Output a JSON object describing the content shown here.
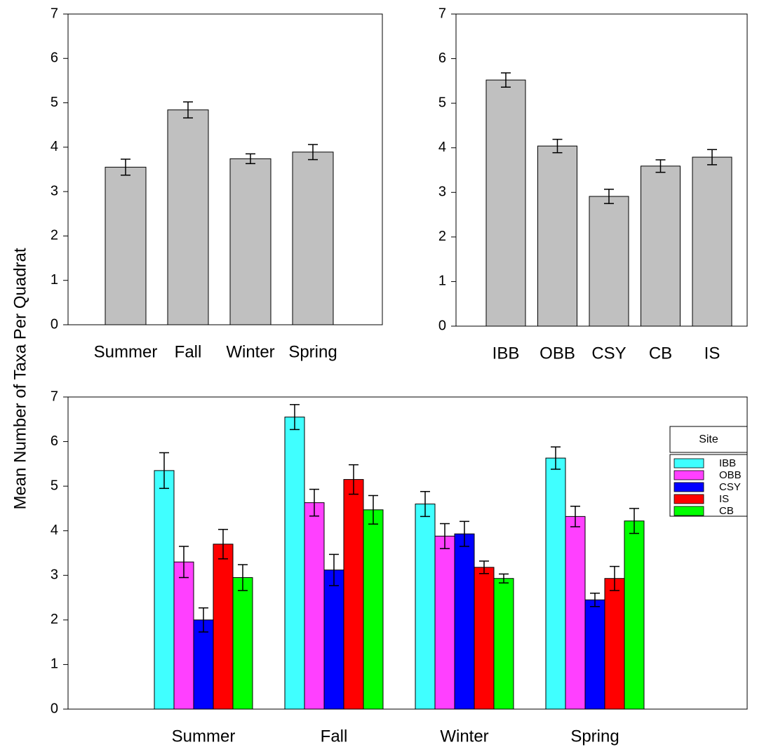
{
  "y_label": "Mean Number of Taxa Per Quadrat",
  "chart_data": [
    {
      "type": "bar",
      "categories": [
        "Summer",
        "Fall",
        "Winter",
        "Spring"
      ],
      "values": [
        3.55,
        4.84,
        3.74,
        3.89
      ],
      "errors": [
        0.18,
        0.18,
        0.11,
        0.17
      ],
      "color": "#c0c0c0",
      "ylim": [
        0,
        7
      ],
      "yticks": [
        0,
        1,
        2,
        3,
        4,
        5,
        6,
        7
      ]
    },
    {
      "type": "bar",
      "categories": [
        "IBB",
        "OBB",
        "CSY",
        "CB",
        "IS"
      ],
      "values": [
        5.52,
        4.04,
        2.91,
        3.59,
        3.79
      ],
      "errors": [
        0.16,
        0.15,
        0.16,
        0.14,
        0.17
      ],
      "color": "#c0c0c0",
      "ylim": [
        0,
        7
      ],
      "yticks": [
        0,
        1,
        2,
        3,
        4,
        5,
        6,
        7
      ]
    },
    {
      "type": "grouped_bar",
      "categories": [
        "Summer",
        "Fall",
        "Winter",
        "Spring"
      ],
      "legend_title": "Site",
      "ylim": [
        0,
        7
      ],
      "yticks": [
        0,
        1,
        2,
        3,
        4,
        5,
        6,
        7
      ],
      "series": [
        {
          "name": "IBB",
          "color": "#40ffff",
          "values": [
            5.35,
            6.55,
            4.6,
            5.63
          ],
          "errors": [
            0.4,
            0.28,
            0.28,
            0.25
          ]
        },
        {
          "name": "OBB",
          "color": "#ff40ff",
          "values": [
            3.3,
            4.63,
            3.88,
            4.32
          ],
          "errors": [
            0.35,
            0.3,
            0.28,
            0.23
          ]
        },
        {
          "name": "CSY",
          "color": "#0000ff",
          "values": [
            2.0,
            3.12,
            3.93,
            2.45
          ],
          "errors": [
            0.27,
            0.35,
            0.28,
            0.15
          ]
        },
        {
          "name": "IS",
          "color": "#ff0000",
          "values": [
            3.7,
            5.15,
            3.18,
            2.93
          ],
          "errors": [
            0.33,
            0.33,
            0.14,
            0.27
          ]
        },
        {
          "name": "CB",
          "color": "#00ff00",
          "values": [
            2.95,
            4.47,
            2.93,
            4.22
          ],
          "errors": [
            0.29,
            0.32,
            0.1,
            0.28
          ]
        }
      ]
    }
  ]
}
